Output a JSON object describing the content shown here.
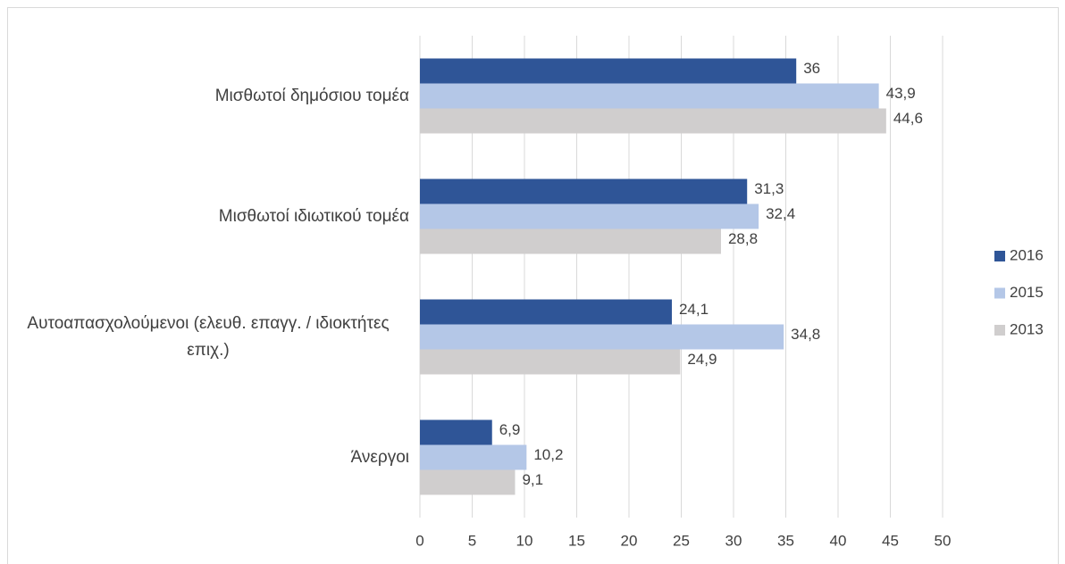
{
  "chart_data": {
    "type": "bar",
    "orientation": "horizontal",
    "categories": [
      "Μισθωτοί δημόσιου τομέα",
      "Μισθωτοί ιδιωτικού τομέα",
      "Αυτοαπασχολούμενοι (ελευθ. επαγγ. / ιδιοκτήτες επιχ.)",
      "Άνεργοι"
    ],
    "series": [
      {
        "name": "2016",
        "color": "#2f5597",
        "values": [
          36,
          31.3,
          24.1,
          6.9
        ],
        "value_labels": [
          "36",
          "31,3",
          "24,1",
          "6,9"
        ]
      },
      {
        "name": "2015",
        "color": "#b4c7e7",
        "values": [
          43.9,
          32.4,
          34.8,
          10.2
        ],
        "value_labels": [
          "43,9",
          "32,4",
          "34,8",
          "10,2"
        ]
      },
      {
        "name": "2013",
        "color": "#d0cece",
        "values": [
          44.6,
          28.8,
          24.9,
          9.1
        ],
        "value_labels": [
          "44,6",
          "28,8",
          "24,9",
          "9,1"
        ]
      }
    ],
    "xlim": [
      0,
      50
    ],
    "xticks": [
      0,
      5,
      10,
      15,
      20,
      25,
      30,
      35,
      40,
      45,
      50
    ],
    "grid": true,
    "legend": "right"
  }
}
